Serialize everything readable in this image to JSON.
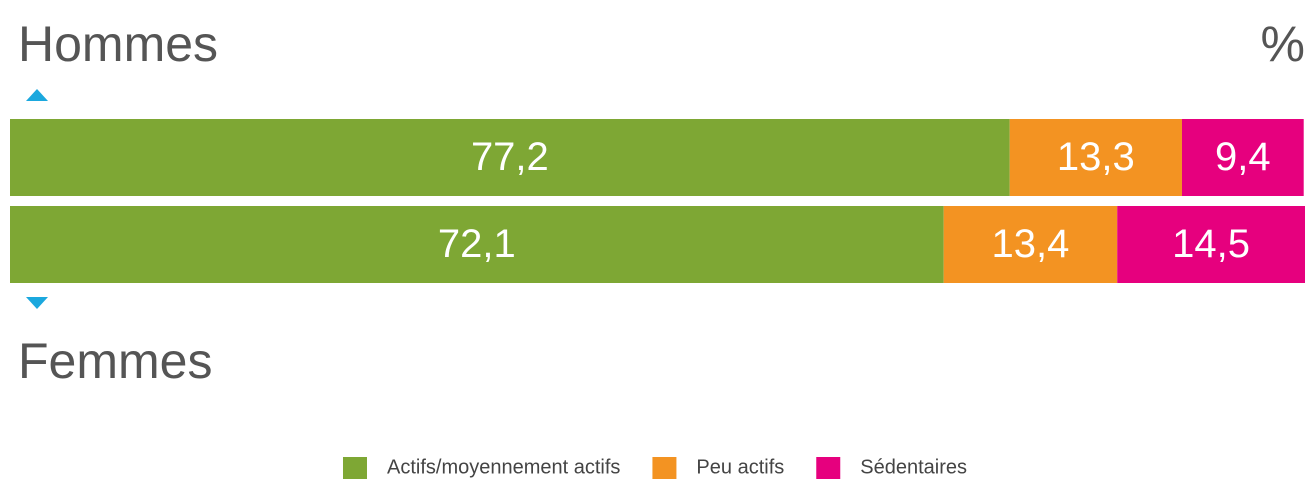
{
  "chart_data": {
    "type": "bar",
    "orientation": "horizontal",
    "stacked": true,
    "unit": "%",
    "categories": [
      "Hommes",
      "Femmes"
    ],
    "xlim": [
      0,
      100
    ],
    "legend": "bottom",
    "series": [
      {
        "name": "Actifs/moyennement actifs",
        "color": "#7ea734",
        "values": [
          77.2,
          72.1
        ],
        "value_labels": [
          "77,2",
          "72,1"
        ]
      },
      {
        "name": "Peu actifs",
        "color": "#f39322",
        "values": [
          13.3,
          13.4
        ],
        "value_labels": [
          "13,3",
          "13,4"
        ]
      },
      {
        "name": "Sédentaires",
        "color": "#e6007e",
        "values": [
          9.4,
          14.5
        ],
        "value_labels": [
          "9,4",
          "14,5"
        ]
      }
    ]
  }
}
